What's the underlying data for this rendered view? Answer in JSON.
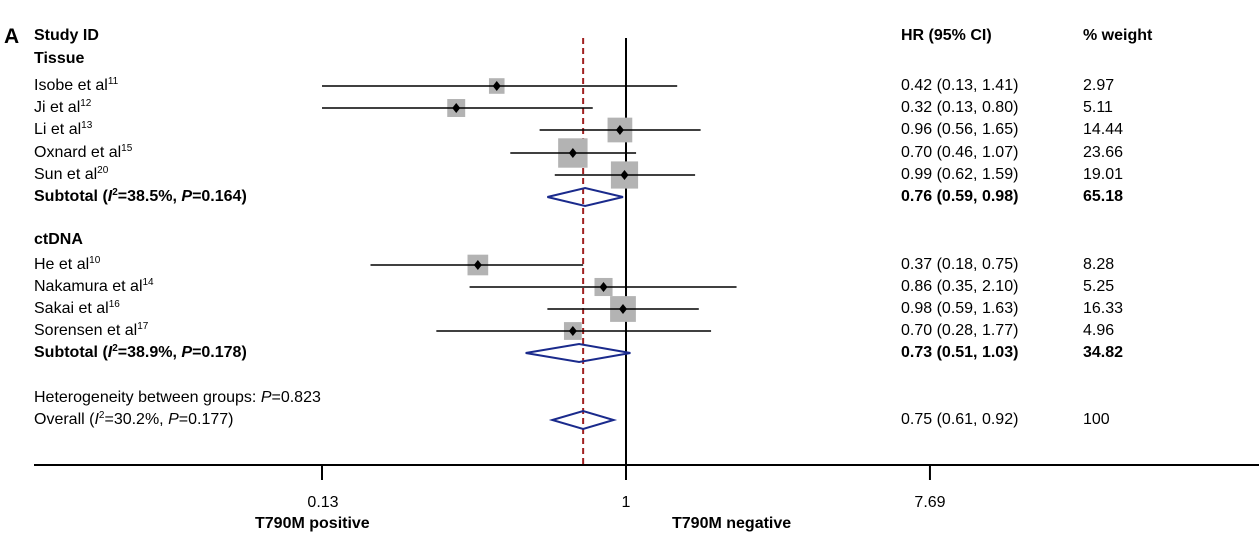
{
  "panel_letter": "A",
  "headers": {
    "study": "Study ID",
    "hr": "HR (95% CI)",
    "weight": "% weight"
  },
  "chart_data": {
    "type": "forest",
    "x_scale": "log",
    "reference_line": 1,
    "pooled_reference": 0.75,
    "x_ticks": [
      0.13,
      1,
      7.69
    ],
    "x_tick_labels": [
      "0.13",
      "1",
      "7.69"
    ],
    "xlabel_left": "T790M positive",
    "xlabel_right": "T790M negative",
    "groups": [
      {
        "name": "Tissue",
        "studies": [
          {
            "label": "Isobe et al",
            "ref": "11",
            "hr": 0.42,
            "lo": 0.13,
            "hi": 1.41,
            "hr_text": "0.42 (0.13, 1.41)",
            "weight": 2.97,
            "weight_text": "2.97"
          },
          {
            "label": "Ji et al",
            "ref": "12",
            "hr": 0.32,
            "lo": 0.13,
            "hi": 0.8,
            "hr_text": "0.32 (0.13, 0.80)",
            "weight": 5.11,
            "weight_text": "5.11"
          },
          {
            "label": "Li et al",
            "ref": "13",
            "hr": 0.96,
            "lo": 0.56,
            "hi": 1.65,
            "hr_text": "0.96 (0.56, 1.65)",
            "weight": 14.44,
            "weight_text": "14.44"
          },
          {
            "label": "Oxnard et al",
            "ref": "15",
            "hr": 0.7,
            "lo": 0.46,
            "hi": 1.07,
            "hr_text": "0.70 (0.46, 1.07)",
            "weight": 23.66,
            "weight_text": "23.66"
          },
          {
            "label": "Sun et al",
            "ref": "20",
            "hr": 0.99,
            "lo": 0.62,
            "hi": 1.59,
            "hr_text": "0.99 (0.62, 1.59)",
            "weight": 19.01,
            "weight_text": "19.01"
          }
        ],
        "subtotal": {
          "prefix": "Subtotal (",
          "i2_symbol": "I",
          "i2_sup": "2",
          "i2_value": "=38.5%, ",
          "p_symbol": "P",
          "p_value": "=0.164)",
          "hr": 0.76,
          "lo": 0.59,
          "hi": 0.98,
          "hr_text": "0.76 (0.59, 0.98)",
          "weight_text": "65.18"
        }
      },
      {
        "name": "ctDNA",
        "studies": [
          {
            "label": "He et al",
            "ref": "10",
            "hr": 0.37,
            "lo": 0.18,
            "hi": 0.75,
            "hr_text": "0.37 (0.18, 0.75)",
            "weight": 8.28,
            "weight_text": "8.28"
          },
          {
            "label": "Nakamura et al",
            "ref": "14",
            "hr": 0.86,
            "lo": 0.35,
            "hi": 2.1,
            "hr_text": "0.86 (0.35, 2.10)",
            "weight": 5.25,
            "weight_text": "5.25"
          },
          {
            "label": "Sakai et al",
            "ref": "16",
            "hr": 0.98,
            "lo": 0.59,
            "hi": 1.63,
            "hr_text": "0.98 (0.59, 1.63)",
            "weight": 16.33,
            "weight_text": "16.33"
          },
          {
            "label": "Sorensen et al",
            "ref": "17",
            "hr": 0.7,
            "lo": 0.28,
            "hi": 1.77,
            "hr_text": "0.70 (0.28, 1.77)",
            "weight": 4.96,
            "weight_text": "4.96"
          }
        ],
        "subtotal": {
          "prefix": "Subtotal (",
          "i2_symbol": "I",
          "i2_sup": "2",
          "i2_value": "=38.9%, ",
          "p_symbol": "P",
          "p_value": "=0.178)",
          "hr": 0.73,
          "lo": 0.51,
          "hi": 1.03,
          "hr_text": "0.73 (0.51, 1.03)",
          "weight_text": "34.82"
        }
      }
    ],
    "heterogeneity": {
      "text": "Heterogeneity between groups: ",
      "p_symbol": "P",
      "p_value": "=0.823"
    },
    "overall": {
      "prefix": "Overall (",
      "i2_symbol": "I",
      "i2_sup": "2",
      "i2_value": "=30.2%, ",
      "p_symbol": "P",
      "p_value": "=0.177)",
      "hr": 0.75,
      "lo": 0.61,
      "hi": 0.92,
      "hr_text": "0.75 (0.61, 0.92)",
      "weight_text": "100"
    }
  },
  "colors": {
    "diamond": "#1a2a8c",
    "dashed_line": "#a02020",
    "box": "#b3b3b3",
    "ink": "#000000"
  }
}
